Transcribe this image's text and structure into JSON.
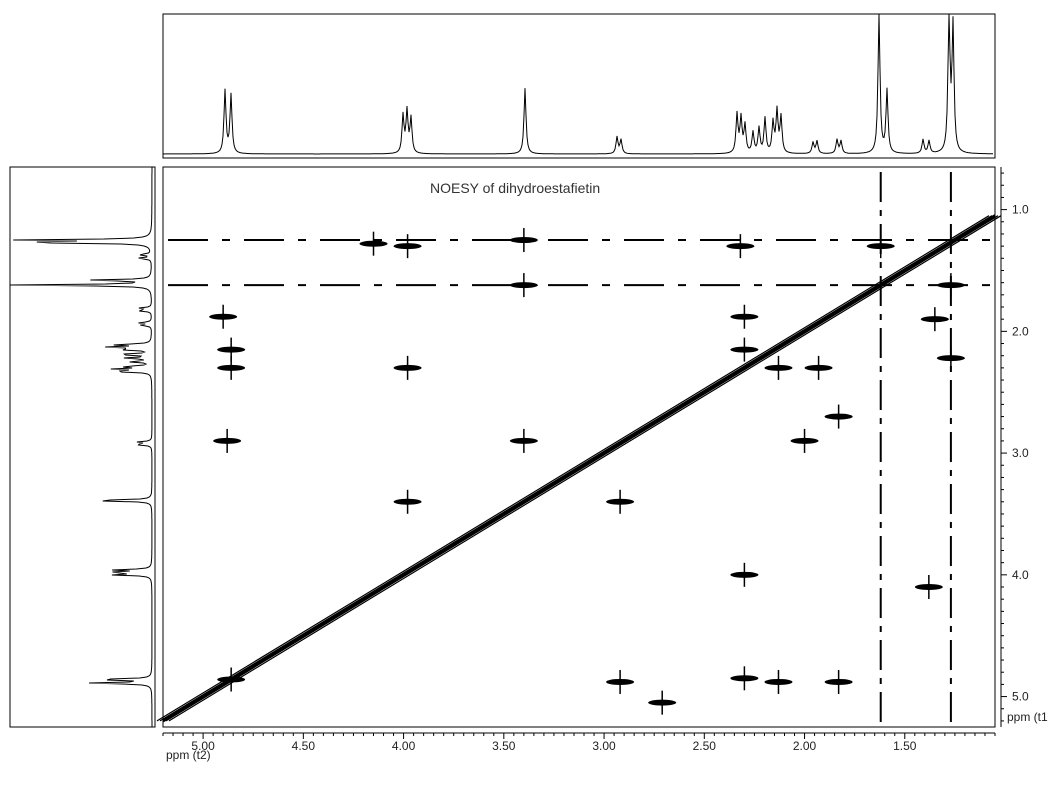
{
  "chart_data": {
    "type": "heatmap",
    "title": "NOESY of dihydroestafietin",
    "xlabel": "ppm (t2)",
    "ylabel": "ppm (t1",
    "xlim": [
      5.2,
      1.05
    ],
    "ylim": [
      0.65,
      5.25
    ],
    "x_ticks": [
      {
        "value": 5.0,
        "label": "5.00"
      },
      {
        "value": 4.5,
        "label": "4.50"
      },
      {
        "value": 4.0,
        "label": "4.00"
      },
      {
        "value": 3.5,
        "label": "3.50"
      },
      {
        "value": 3.0,
        "label": "3.00"
      },
      {
        "value": 2.5,
        "label": "2.50"
      },
      {
        "value": 2.0,
        "label": "2.00"
      },
      {
        "value": 1.5,
        "label": "1.50"
      }
    ],
    "y_ticks": [
      {
        "value": 1.0,
        "label": "1.0"
      },
      {
        "value": 2.0,
        "label": "2.0"
      },
      {
        "value": 3.0,
        "label": "3.0"
      },
      {
        "value": 4.0,
        "label": "4.0"
      },
      {
        "value": 5.0,
        "label": "5.0"
      }
    ],
    "projection_peaks": [
      {
        "ppm": 4.89,
        "intensity": 0.45
      },
      {
        "ppm": 4.86,
        "intensity": 0.42
      },
      {
        "ppm": 4.0,
        "intensity": 0.27
      },
      {
        "ppm": 3.98,
        "intensity": 0.3
      },
      {
        "ppm": 3.96,
        "intensity": 0.25
      },
      {
        "ppm": 3.39,
        "intensity": 0.47
      },
      {
        "ppm": 2.93,
        "intensity": 0.12
      },
      {
        "ppm": 2.91,
        "intensity": 0.1
      },
      {
        "ppm": 2.33,
        "intensity": 0.28
      },
      {
        "ppm": 2.31,
        "intensity": 0.25
      },
      {
        "ppm": 2.29,
        "intensity": 0.2
      },
      {
        "ppm": 2.25,
        "intensity": 0.15
      },
      {
        "ppm": 2.22,
        "intensity": 0.18
      },
      {
        "ppm": 2.19,
        "intensity": 0.25
      },
      {
        "ppm": 2.15,
        "intensity": 0.22
      },
      {
        "ppm": 2.13,
        "intensity": 0.3
      },
      {
        "ppm": 2.11,
        "intensity": 0.26
      },
      {
        "ppm": 1.95,
        "intensity": 0.08
      },
      {
        "ppm": 1.93,
        "intensity": 0.09
      },
      {
        "ppm": 1.83,
        "intensity": 0.1
      },
      {
        "ppm": 1.81,
        "intensity": 0.09
      },
      {
        "ppm": 1.62,
        "intensity": 1.0
      },
      {
        "ppm": 1.58,
        "intensity": 0.45
      },
      {
        "ppm": 1.4,
        "intensity": 0.1
      },
      {
        "ppm": 1.37,
        "intensity": 0.09
      },
      {
        "ppm": 1.27,
        "intensity": 1.0
      },
      {
        "ppm": 1.25,
        "intensity": 0.9
      }
    ],
    "diagonal": {
      "from": 5.2,
      "to": 1.05
    },
    "cross_peaks": [
      {
        "x": 4.9,
        "y": 1.88
      },
      {
        "x": 4.86,
        "y": 2.15
      },
      {
        "x": 4.86,
        "y": 2.3
      },
      {
        "x": 4.88,
        "y": 2.9
      },
      {
        "x": 4.86,
        "y": 4.86
      },
      {
        "x": 4.15,
        "y": 1.28
      },
      {
        "x": 3.98,
        "y": 1.3
      },
      {
        "x": 3.98,
        "y": 2.3
      },
      {
        "x": 3.98,
        "y": 3.4
      },
      {
        "x": 3.4,
        "y": 1.25
      },
      {
        "x": 3.4,
        "y": 1.62
      },
      {
        "x": 3.4,
        "y": 2.9
      },
      {
        "x": 2.92,
        "y": 3.4
      },
      {
        "x": 2.92,
        "y": 4.88
      },
      {
        "x": 2.71,
        "y": 5.05
      },
      {
        "x": 2.32,
        "y": 1.3
      },
      {
        "x": 2.3,
        "y": 1.88
      },
      {
        "x": 2.3,
        "y": 2.15
      },
      {
        "x": 2.3,
        "y": 4.0
      },
      {
        "x": 2.3,
        "y": 4.85
      },
      {
        "x": 2.13,
        "y": 4.88
      },
      {
        "x": 2.13,
        "y": 2.3
      },
      {
        "x": 1.93,
        "y": 2.3
      },
      {
        "x": 1.83,
        "y": 2.7
      },
      {
        "x": 1.83,
        "y": 4.88
      },
      {
        "x": 1.62,
        "y": 1.3
      },
      {
        "x": 1.38,
        "y": 4.1
      },
      {
        "x": 1.27,
        "y": 1.62
      },
      {
        "x": 1.27,
        "y": 2.22
      },
      {
        "x": 1.35,
        "y": 1.9
      },
      {
        "x": 2.0,
        "y": 2.9
      }
    ],
    "grid": false,
    "legend": "none"
  }
}
